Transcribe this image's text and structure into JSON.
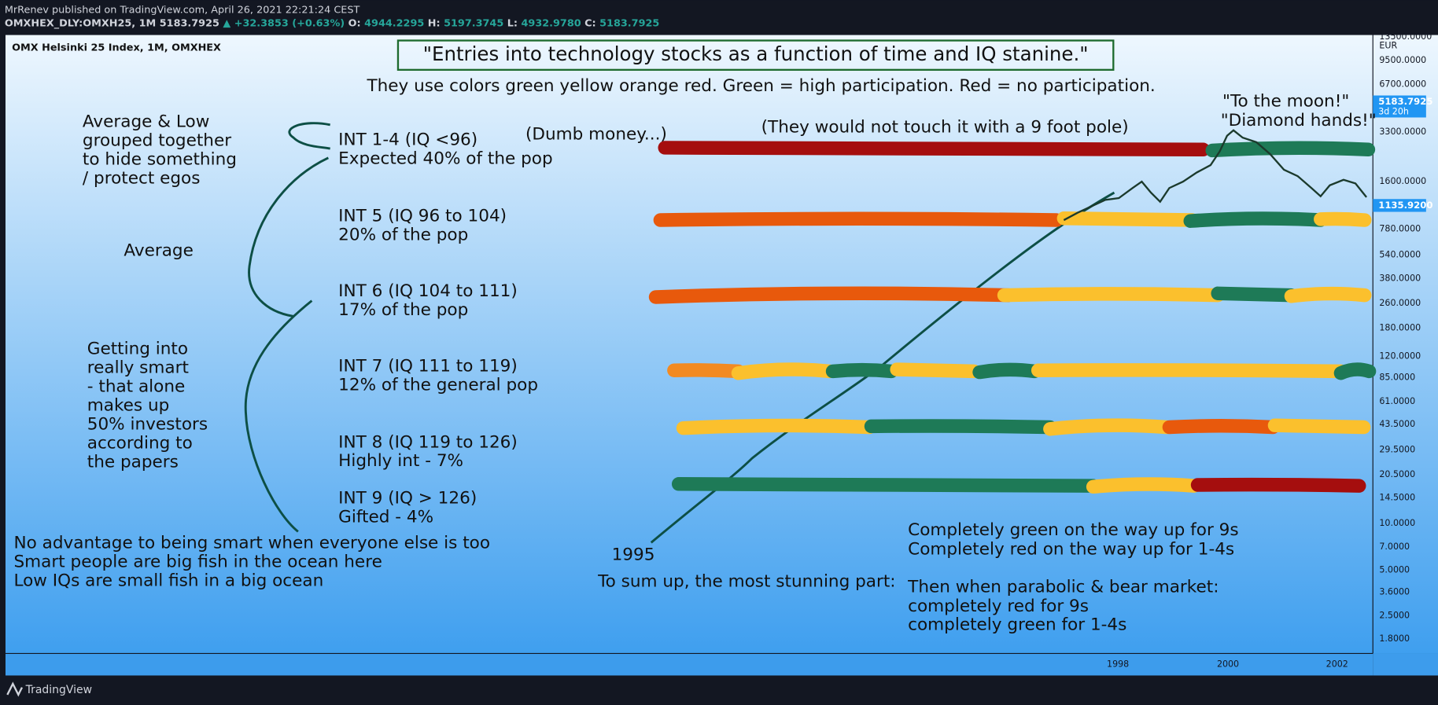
{
  "header": {
    "publisher": "MrRenev published on TradingView.com, April 26, 2021 22:21:24 CEST",
    "symbol": "OMXHEX_DLY:OMXH25, 1M",
    "last": "5183.7925",
    "change": "▲ +32.3853 (+0.63%)",
    "ohlc": [
      {
        "key": "O:",
        "value": "4944.2295"
      },
      {
        "key": "H:",
        "value": "5197.3745"
      },
      {
        "key": "L:",
        "value": "4932.9780"
      },
      {
        "key": "C:",
        "value": "5183.7925"
      }
    ]
  },
  "chart": {
    "instrument": "OMX Helsinki 25 Index, 1M, OMXHEX",
    "title": "\"Entries into technology stocks as a function of time and IQ stanine.\"",
    "subtitle": "They use colors green yellow orange red. Green = high participation. Red = no participation.",
    "left_notes": [
      [
        "Average & Low",
        "grouped together",
        "to hide something",
        "/ protect egos"
      ],
      [
        "Average"
      ],
      [
        "Getting into",
        "really smart",
        "- that alone",
        "makes up",
        "50% investors",
        "according to",
        "the papers"
      ]
    ],
    "groups": [
      [
        "INT 1-4 (IQ <96)",
        "Expected 40% of the pop"
      ],
      [
        "INT 5 (IQ 96 to 104)",
        "20% of the pop"
      ],
      [
        "INT 6 (IQ 104 to 111)",
        "17% of the pop"
      ],
      [
        "INT 7 (IQ 111 to 119)",
        "12% of the general pop"
      ],
      [
        "INT 8 (IQ 119 to 126)",
        "Highly int - 7%"
      ],
      [
        "INT 9 (IQ > 126)",
        "Gifted - 4%"
      ]
    ],
    "bottom_left": [
      "No advantage to being smart when everyone else is too",
      "Smart people are big fish in the ocean here",
      "Low IQs are small fish in a big ocean"
    ],
    "callouts": [
      "(Dumb money...)",
      "(They would not touch it with a 9 foot pole)",
      "\"To the moon!\"",
      "\"Diamond hands!\"",
      "1995",
      "To sum up, the most stunning part:"
    ],
    "summary": [
      "Completely green on the way up for 9s",
      "Completely red on the way up for 1-4s",
      "Then when parabolic & bear market:",
      "completely red for 9s",
      "completely green for 1-4s"
    ],
    "price_axis": [
      "13500.0000",
      "EUR",
      "9500.0000",
      "6700.0000",
      "3300.0000",
      "1600.0000",
      "780.0000",
      "540.0000",
      "380.0000",
      "260.0000",
      "180.0000",
      "120.0000",
      "85.0000",
      "61.0000",
      "43.5000",
      "29.5000",
      "20.5000",
      "14.5000",
      "10.0000",
      "7.0000",
      "5.0000",
      "3.6000",
      "2.5000",
      "1.8000"
    ],
    "last_badge": [
      "5183.7925",
      "3d 20h"
    ],
    "low_badge": "1135.9200",
    "time_axis": [
      "1998",
      "2000",
      "2002"
    ]
  },
  "footer": {
    "brand": "TradingView"
  }
}
